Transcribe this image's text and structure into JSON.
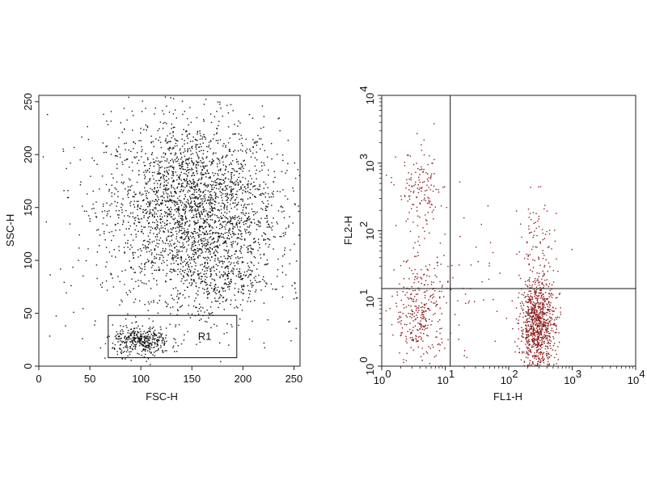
{
  "chart_data": [
    {
      "type": "scatter",
      "title": "",
      "xlabel": "FSC-H",
      "ylabel": "SSC-H",
      "xlim": [
        0,
        256
      ],
      "ylim": [
        0,
        256
      ],
      "xscale": "linear",
      "yscale": "linear",
      "x_ticks": [
        "0",
        "50",
        "100",
        "150",
        "200",
        "250"
      ],
      "y_ticks": [
        "0",
        "50",
        "100",
        "150",
        "200",
        "250"
      ],
      "grid": false,
      "point_color": "#111111",
      "gate": {
        "label": "R1",
        "x": [
          68,
          194
        ],
        "y": [
          8,
          48
        ]
      },
      "clusters": [
        {
          "cx": 150,
          "cy": 150,
          "sx": 42,
          "sy": 42,
          "n": 2600
        },
        {
          "cx": 100,
          "cy": 24,
          "sx": 14,
          "sy": 7,
          "n": 380
        },
        {
          "cx": 175,
          "cy": 85,
          "sx": 28,
          "sy": 20,
          "n": 320
        },
        {
          "cx": 150,
          "cy": 100,
          "sx": 90,
          "sy": 90,
          "n": 220
        }
      ]
    },
    {
      "type": "scatter",
      "title": "",
      "xlabel": "FL1-H",
      "ylabel": "FL2-H",
      "xlim": [
        1,
        10000
      ],
      "ylim": [
        1,
        10000
      ],
      "xscale": "log",
      "yscale": "log",
      "x_ticks": [
        {
          "base": "10",
          "exp": "0"
        },
        {
          "base": "10",
          "exp": "1"
        },
        {
          "base": "10",
          "exp": "2"
        },
        {
          "base": "10",
          "exp": "3"
        },
        {
          "base": "10",
          "exp": "4"
        }
      ],
      "y_ticks": [
        {
          "base": "10",
          "exp": "0"
        },
        {
          "base": "10",
          "exp": "1"
        },
        {
          "base": "10",
          "exp": "2"
        },
        {
          "base": "10",
          "exp": "3"
        },
        {
          "base": "10",
          "exp": "4"
        }
      ],
      "grid": false,
      "point_color": "#8b1a1a",
      "quadrant_lines": {
        "x": 12,
        "y": 14
      },
      "clusters": [
        {
          "cx_log": 2.45,
          "cy_log": 0.6,
          "sx_log": 0.14,
          "sy_log": 0.35,
          "n": 900
        },
        {
          "cx_log": 0.6,
          "cy_log": 0.8,
          "sx_log": 0.2,
          "sy_log": 0.4,
          "n": 320
        },
        {
          "cx_log": 0.6,
          "cy_log": 2.6,
          "sx_log": 0.18,
          "sy_log": 0.3,
          "n": 140
        },
        {
          "cx_log": 2.45,
          "cy_log": 1.7,
          "sx_log": 0.15,
          "sy_log": 0.4,
          "n": 90
        },
        {
          "cx_log": 1.5,
          "cy_log": 1.2,
          "sx_log": 0.6,
          "sy_log": 0.7,
          "n": 70
        }
      ]
    }
  ]
}
